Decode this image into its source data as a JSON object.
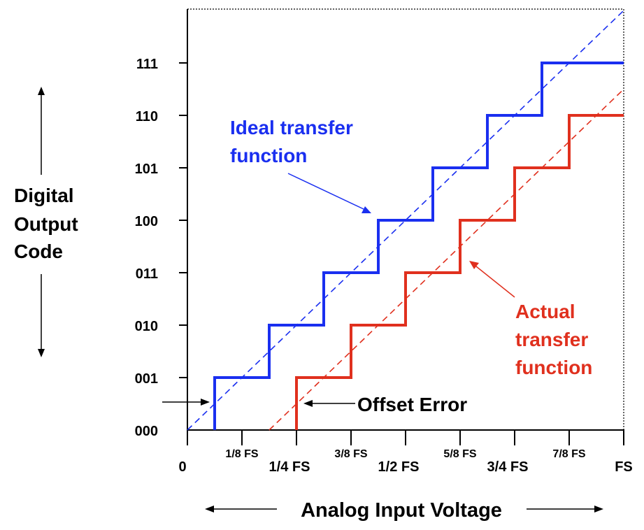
{
  "chart_data": {
    "type": "line",
    "title": "",
    "xlabel": "Analog Input Voltage",
    "ylabel": "Digital Output Code",
    "ylabel_lines": [
      "Digital",
      "Output",
      "Code"
    ],
    "x_ticks_major": [
      "0",
      "1/4 FS",
      "1/2 FS",
      "3/4 FS",
      "FS"
    ],
    "x_ticks_minor": [
      "1/8 FS",
      "3/8 FS",
      "5/8 FS",
      "7/8 FS"
    ],
    "y_ticks": [
      "000",
      "001",
      "010",
      "011",
      "100",
      "101",
      "110",
      "111"
    ],
    "xlim": [
      0,
      1
    ],
    "ylim": [
      0,
      8
    ],
    "series": [
      {
        "name": "Ideal transfer function",
        "label_lines": [
          "Ideal transfer",
          "function"
        ],
        "color": "#1a2ff0",
        "transitions": [
          0.0625,
          0.1875,
          0.3125,
          0.4375,
          0.5625,
          0.6875,
          0.8125
        ],
        "ideal_line": [
          [
            0,
            0
          ],
          [
            1,
            8
          ]
        ]
      },
      {
        "name": "Actual transfer function",
        "label_lines": [
          "Actual",
          "transfer",
          "function"
        ],
        "color": "#e0301e",
        "transitions": [
          0.25,
          0.375,
          0.5,
          0.625,
          0.75,
          0.875
        ],
        "ideal_line": [
          [
            0.1875,
            0
          ],
          [
            1,
            6.5
          ]
        ]
      }
    ],
    "annotations": {
      "offset_error": "Offset Error"
    },
    "grid": false,
    "legend": "none"
  }
}
